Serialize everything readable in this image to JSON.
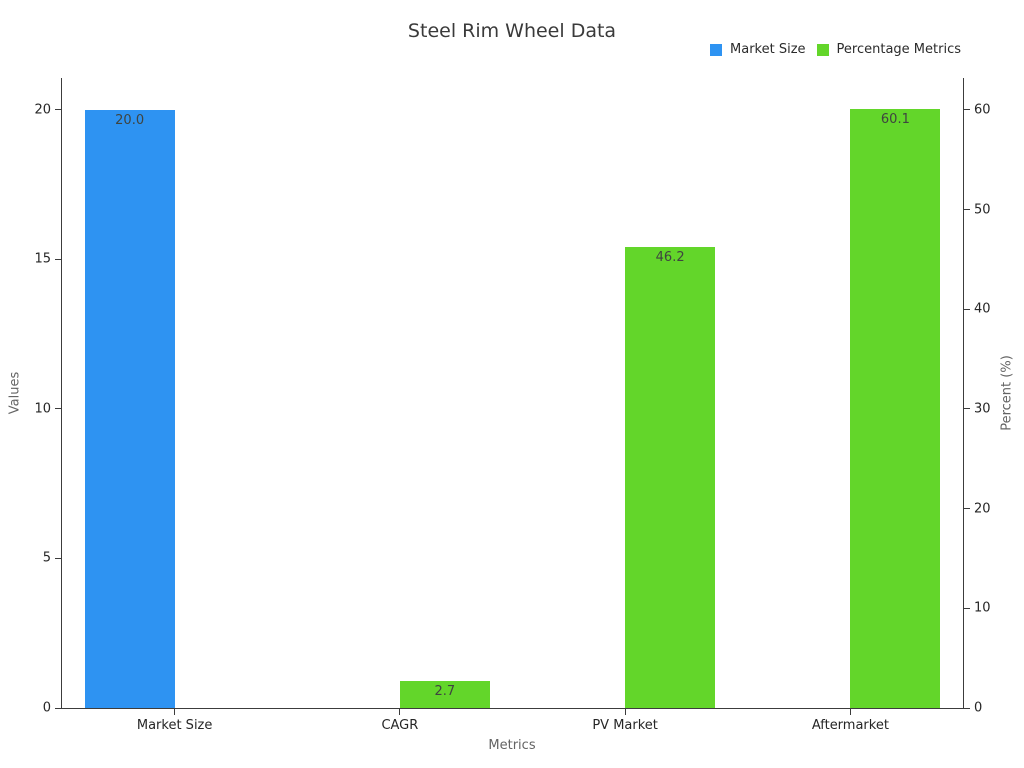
{
  "chart_data": {
    "type": "bar",
    "title": "Steel Rim Wheel Data",
    "xlabel": "Metrics",
    "ylabel_left": "Values",
    "ylabel_right": "Percent (%)",
    "categories": [
      "Market Size",
      "CAGR",
      "PV Market",
      "Aftermarket"
    ],
    "series": [
      {
        "name": "Market Size",
        "axis": "left",
        "color": "#2E93F2",
        "values": [
          20.0,
          null,
          null,
          null
        ],
        "value_labels": [
          "20.0",
          null,
          null,
          null
        ]
      },
      {
        "name": "Percentage Metrics",
        "axis": "right",
        "color": "#63D62A",
        "values": [
          null,
          2.7,
          46.2,
          60.1
        ],
        "value_labels": [
          null,
          "2.7",
          "46.2",
          "60.1"
        ]
      }
    ],
    "y_left": {
      "tick_labels": [
        "0",
        "5",
        "10",
        "15",
        "20"
      ],
      "tick_values": [
        0,
        5,
        10,
        15,
        20
      ],
      "axis_max": 21.07
    },
    "y_right": {
      "tick_labels": [
        "0",
        "10",
        "20",
        "30",
        "40",
        "50",
        "60"
      ],
      "tick_values": [
        0,
        10,
        20,
        30,
        40,
        50,
        60
      ],
      "axis_max": 63.2
    },
    "legend": {
      "position": "top-right",
      "entries": [
        "Market Size",
        "Percentage Metrics"
      ]
    },
    "grid": false,
    "background_color": "#ffffff"
  }
}
